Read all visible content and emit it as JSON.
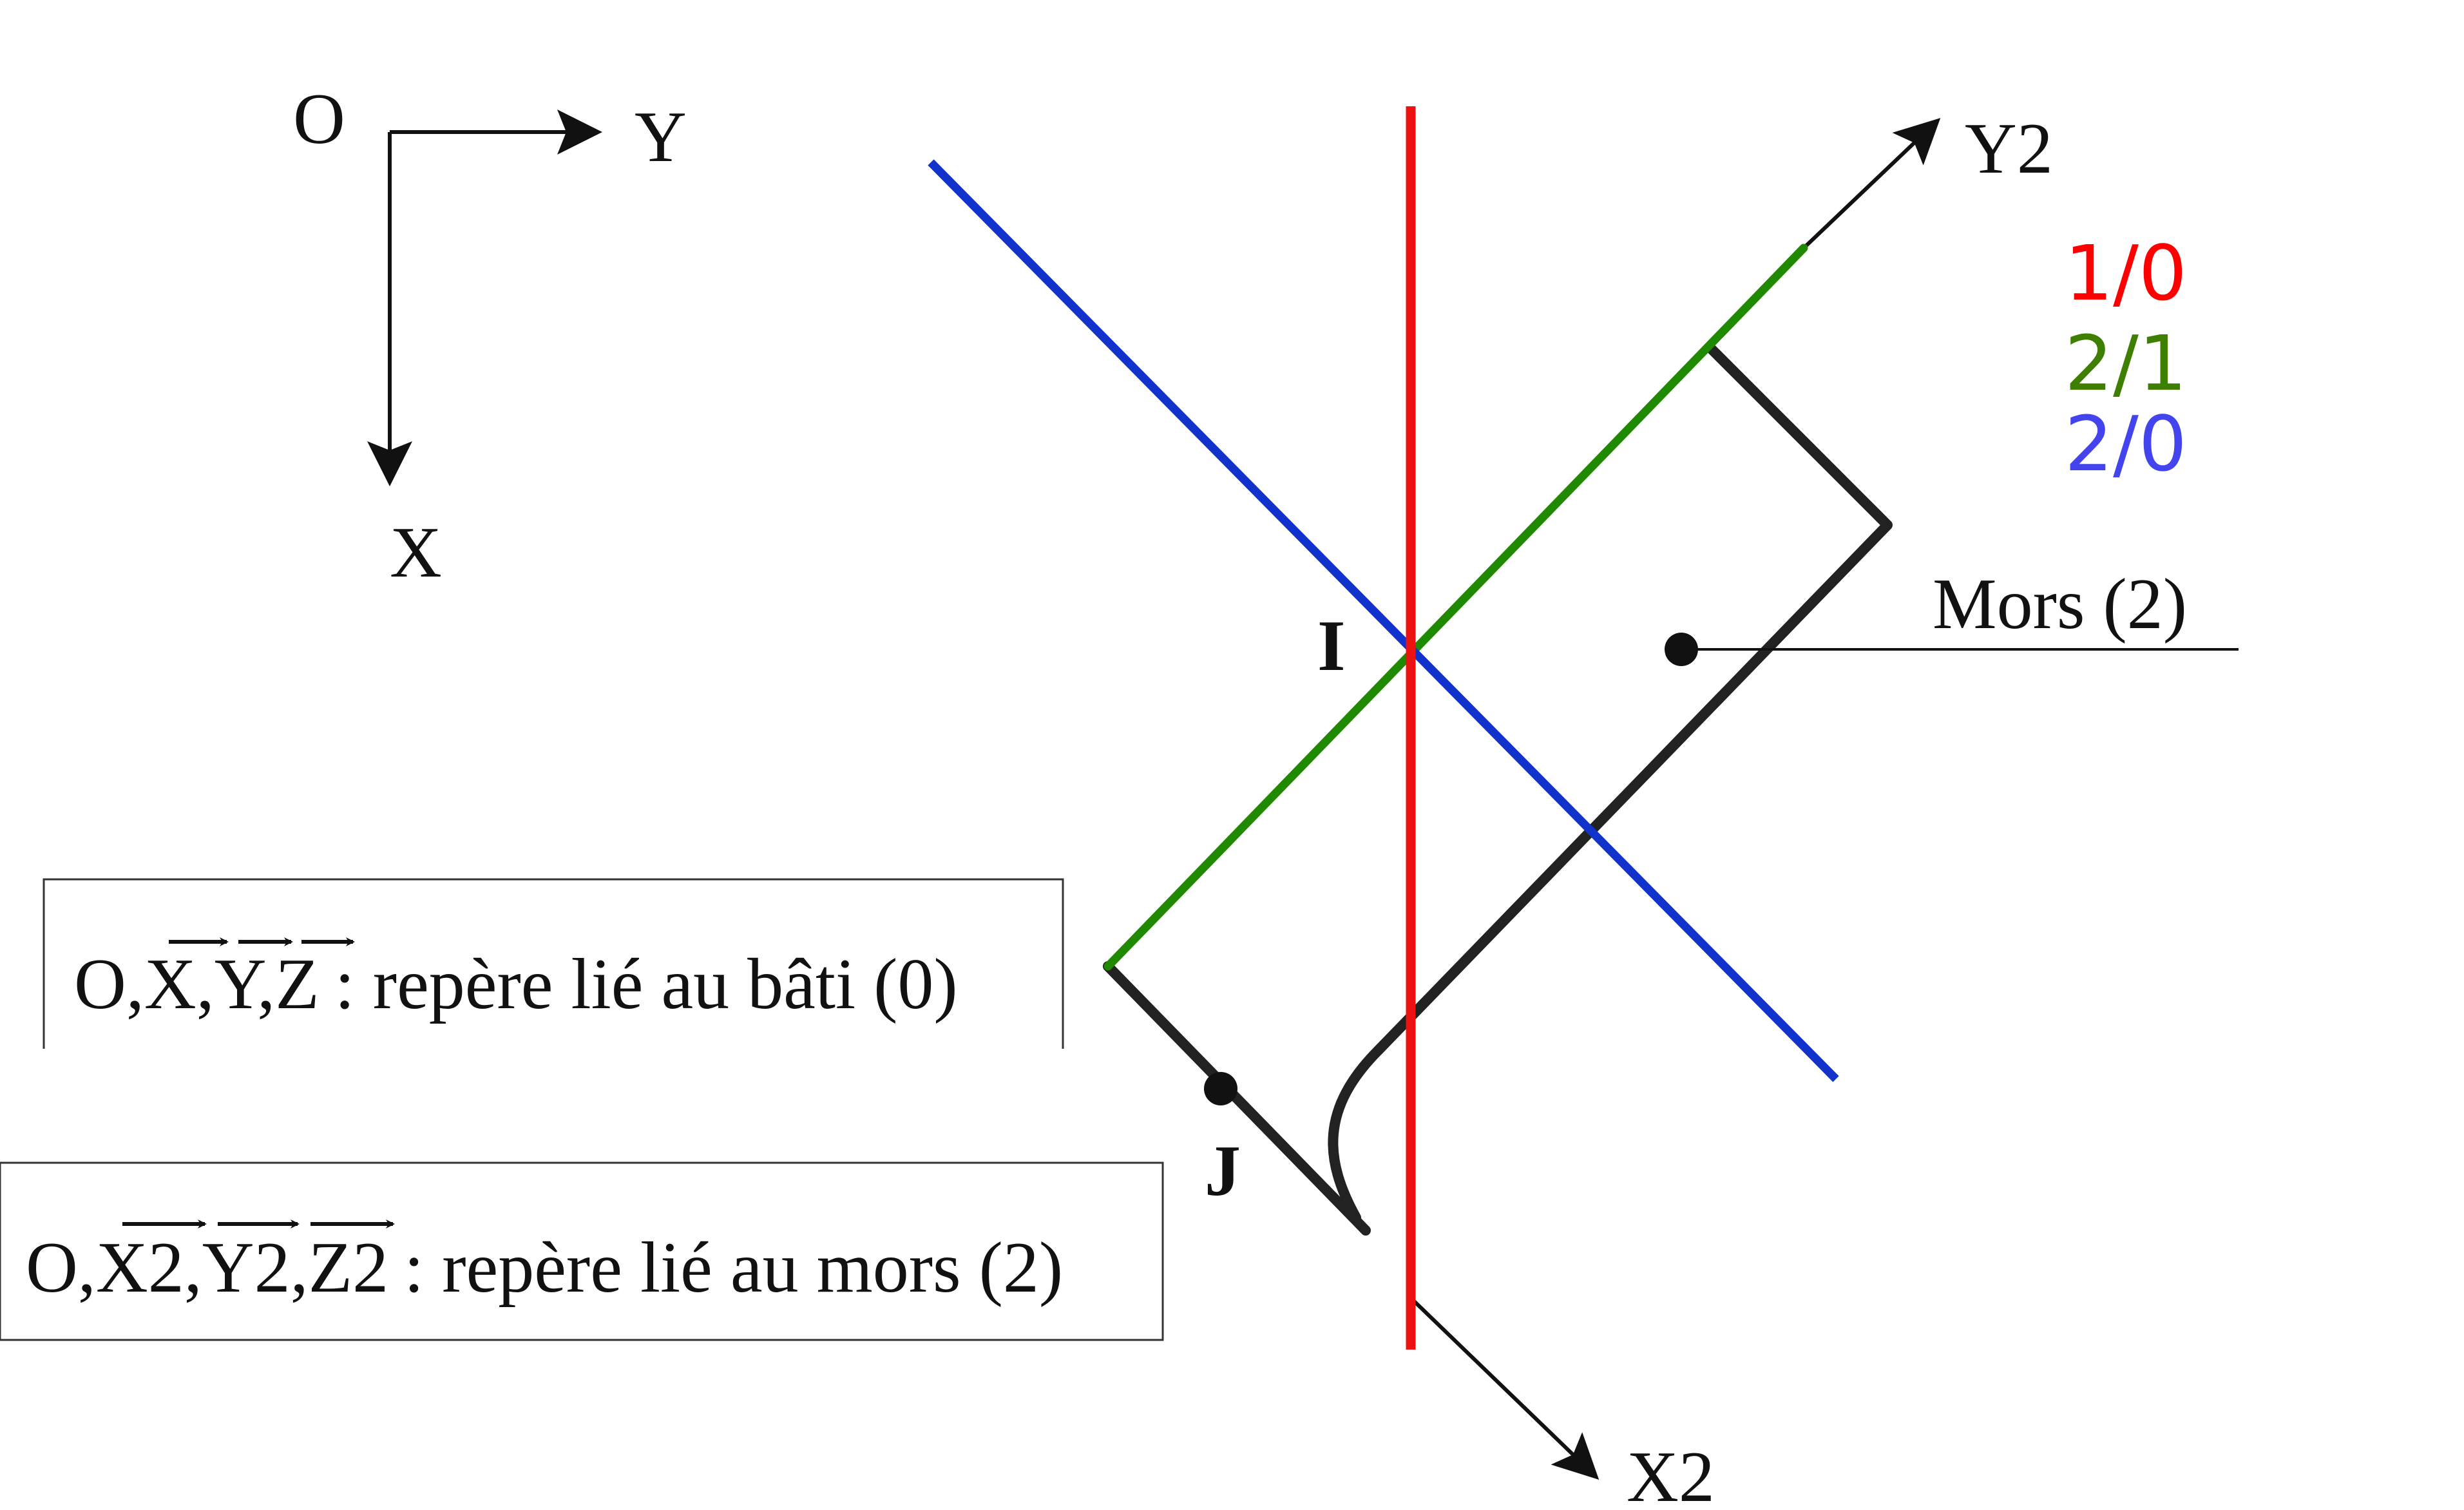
{
  "fixed_frame": {
    "origin_label": "O",
    "x_axis_label": "X",
    "y_axis_label": "Y"
  },
  "jaw_frame": {
    "x_axis_label": "X2",
    "y_axis_label": "Y2"
  },
  "points": {
    "i_label": "I",
    "j_label": "J"
  },
  "part_label": "Mors (2)",
  "legend": [
    {
      "text": "1/0",
      "color": "#ff0000"
    },
    {
      "text": "2/1",
      "color": "#3f7f00"
    },
    {
      "text": "2/0",
      "color": "#4444ee"
    }
  ],
  "colors": {
    "line_1_0": "#ee1111",
    "line_2_1": "#1f8a00",
    "line_2_0": "#1133cc"
  },
  "boxes": {
    "fixed_frame_text": {
      "prefix": "O,",
      "vectors": [
        "X",
        "Y",
        "Z"
      ],
      "suffix": ": repère lié au bâti (0)"
    },
    "jaw_frame_text": {
      "prefix": "O,",
      "vectors": [
        "X2",
        "Y2",
        "Z2"
      ],
      "suffix": ": repère lié au mors (2)"
    }
  }
}
